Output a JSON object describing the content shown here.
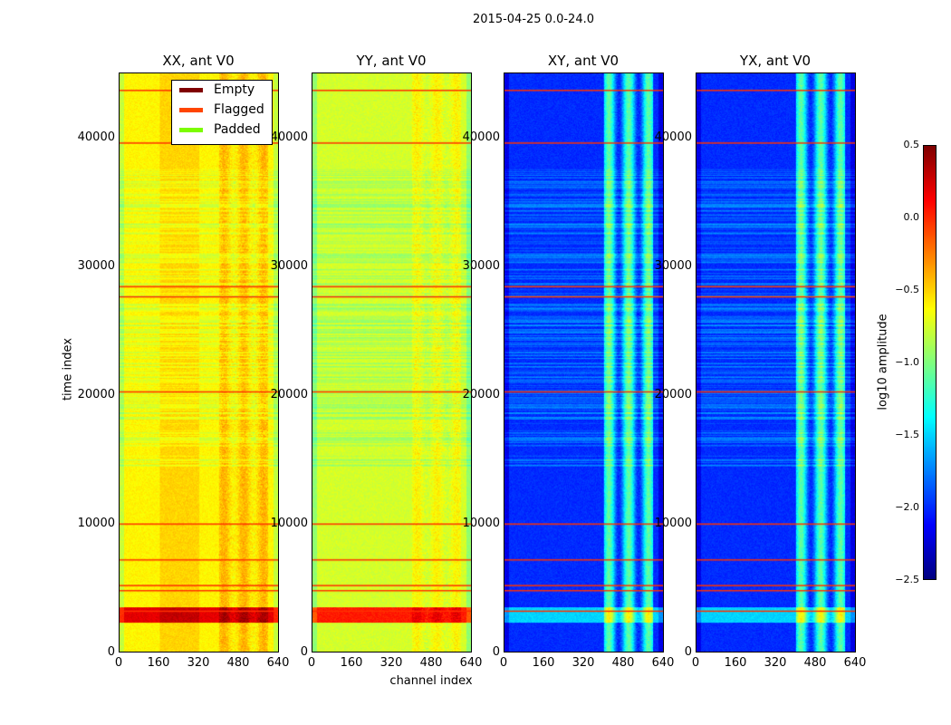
{
  "suptitle": "2015-04-25 0.0-24.0",
  "chart_data": [
    {
      "type": "heatmap",
      "title": "XX, ant V0",
      "base": -0.6,
      "band": 0.2
    },
    {
      "type": "heatmap",
      "title": "YY, ant V0",
      "base": -0.75,
      "band": 0.15
    },
    {
      "type": "heatmap",
      "title": "XY, ant V0",
      "base": -2.0,
      "band": 0.9
    },
    {
      "type": "heatmap",
      "title": "YX, ant V0",
      "base": -2.0,
      "band": 0.9
    }
  ],
  "axes": {
    "xlabel": "channel index",
    "ylabel": "time index",
    "xlim": [
      0,
      640
    ],
    "ylim": [
      0,
      45070
    ],
    "xticks": [
      "0",
      "160",
      "320",
      "480",
      "640"
    ],
    "yticks": [
      "0",
      "10000",
      "20000",
      "30000",
      "40000"
    ]
  },
  "flagged_times": [
    43800,
    39700,
    28500,
    27700,
    20300,
    10000,
    7200,
    5200,
    4800,
    3200
  ],
  "legend": {
    "placement": "upper-right of first panel",
    "items": [
      {
        "label": "Empty",
        "color": "#800000"
      },
      {
        "label": "Flagged",
        "color": "#ff4500"
      },
      {
        "label": "Padded",
        "color": "#7cfc00"
      }
    ]
  },
  "colorbar": {
    "label": "log10 amplitude",
    "range": [
      -2.5,
      0.5
    ],
    "ticks": [
      "0.5",
      "0.0",
      "−0.5",
      "−1.0",
      "−1.5",
      "−2.0",
      "−2.5"
    ]
  }
}
